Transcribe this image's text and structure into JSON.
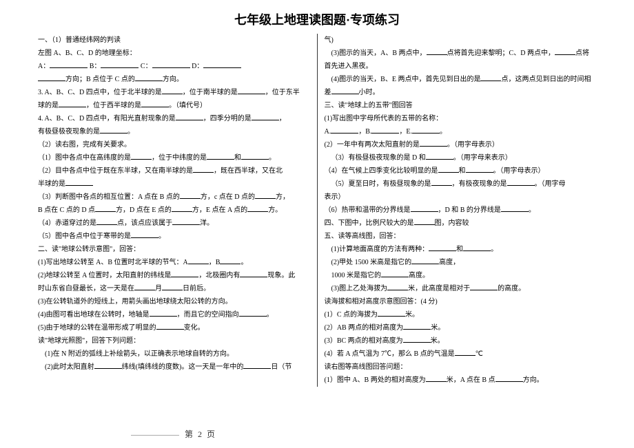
{
  "title": "七年级上地理读图题·专项练习",
  "left": {
    "h1": "一、（1）普通经纬网的判读",
    "l1": "左图 A、B、C、D 的地理坐标：",
    "l2a": "A：",
    "l2b": "B：",
    "l2c": "C：",
    "l2d": "D：",
    "l3a": "方向；B 点位于 C 点的",
    "l3b": "方向。",
    "l4a": "3. A、B、C、D 四点中，位于北半球的是",
    "l4b": "，位于南半球的是",
    "l4c": "，位于东半",
    "l5a": "球的是",
    "l5b": "，位于西半球的是",
    "l5c": "。（填代号）",
    "l6a": "4. A、B、C、D 四点中，有阳光直射现象的是",
    "l6b": "，四季分明的是",
    "l6c": "，",
    "l7a": "有极昼极夜现象的是",
    "l7b": "。",
    "h2": "（2）读右图，完成有关要求。",
    "l8a": "（1）图中各点中在高纬度的是",
    "l8b": "，位于中纬度的是",
    "l8c": "和",
    "l8d": "。",
    "l9a": "（2）目中各点中位于既在东半球，又在南半球的是",
    "l9b": "，既在西半球，又在北",
    "l10": "半球的是",
    "l11a": "（3）判断图中各点的相互位置：A 点在 B 点的",
    "l11b": "方，c 点在 D 点的",
    "l11c": "方，",
    "l12a": "B 点在 C 点的 D 点",
    "l12b": "方，D 点在 E 点的",
    "l12c": "方，E 点在 A 点的",
    "l12d": "方。",
    "l13a": "（4）赤道穿过的是",
    "l13b": "点，该点应该属于",
    "l13c": "洋。",
    "l14a": "（5）图中各点中位于寒带的是",
    "l14b": "。",
    "h3": "二、读\"地球公转示意图\"，回答：",
    "l15a": "(1)写出地球公转至 A、B 位置时北半球的节气：A",
    "l15b": "，B",
    "l15c": "。",
    "l16a": "(2)地球公转至 A 位置时，太阳直射的纬线是",
    "l16b": "，北极圈内有",
    "l16c": "现象。此",
    "l17a": "时山东省白昼最长，这一天是在",
    "l17b": "月",
    "l17c": "日前后。",
    "l18a": "(3)在公转轨道外的短线上，用箭头画出地球绕太阳公转的方向。",
    "l19a": "(4)由图可看出地球在公转时，地轴是",
    "l19b": "，而且它的空间指向",
    "l19c": "。",
    "l20a": "(5)由于地球的公转在温带形成了明显的",
    "l20b": "变化。",
    "h4": "读\"地球光照图\"，回答下列问题：",
    "l21": "(1)在 N 附近的弧线上补绘箭头，以正确表示地球自转的方向。",
    "l22a": "(2)此时太阳直射",
    "l22b": "纬线(填纬线的度数)。这一天是一年中的",
    "l22c": "日（节"
  },
  "right": {
    "r0": "气)",
    "r1a": "(3)图示的当天，A、B 两点中，",
    "r1b": "点将首先迎来黎明；C、D 两点中，",
    "r1c": "点将",
    "r2": "首先进入黑夜。",
    "r3a": "(4)图示的当天，B、E 两点中，首先见到日出的是",
    "r3b": "点，这两点见到日出的时间相",
    "r4a": "差",
    "r4b": "小时。",
    "h5": "三、读\"地球上的五带\"图回答",
    "r5": "(1)写出图中字母所代表的五带的名称：",
    "r6a": "A.",
    "r6b": "，B.",
    "r6c": "，E.",
    "r6d": "。",
    "r7a": "(2）一年中有两次太阳直射的是",
    "r7b": "。（用字母表示）",
    "r8a": "（3）有极昼极夜现象的是 D 和",
    "r8b": "。（用字母来表示）",
    "r9a": "（4）在气候上四季变化比较明显的是",
    "r9b": "和",
    "r9c": "。（用字母表示）",
    "r10a": "（5）夏至日时，有极昼现象的是",
    "r10b": "，有极夜现象的是",
    "r10c": "。（用字母",
    "r10d": "表示）",
    "r11a": "（6）热带和温带的分界线是",
    "r11b": "，D 和 B 的分界线是",
    "r11c": "。",
    "h6a": "四、下图中，比例尺较大的是",
    "h6b": "图，内容较",
    "h7": "五、读等高线图，回答：",
    "r12a": "(1)计算地面高度的方法有两种：",
    "r12b": "和",
    "r12c": "。",
    "r13a": "(2)甲处 1500 米高是指它的",
    "r13b": "高度，",
    "r14a": "1000 米是指它的",
    "r14b": "高度。",
    "r15a": "(3)图上乙处海拔为",
    "r15b": "米，此高度是相对于",
    "r15c": "的高度。",
    "h8": "读海拔和相对高度示意图回答：(4 分)",
    "r16a": "(1）C 点的海拔为",
    "r16b": "米。",
    "r17a": "(2）AB 两点的相对高度为",
    "r17b": "米。",
    "r18a": "(3）BC 两点的相对高度为",
    "r18b": "米。",
    "r19a": "(4）若 A 点气温为 7℃，那么 B 点的气温是",
    "r19b": "℃",
    "h9": "读右图等高线图回答问题：",
    "r20a": "(1）图中 A、B 两处的相对高度为",
    "r20b": "米，A 点在 B 点",
    "r20c": "方向。"
  },
  "pagenum": "第 2 页"
}
